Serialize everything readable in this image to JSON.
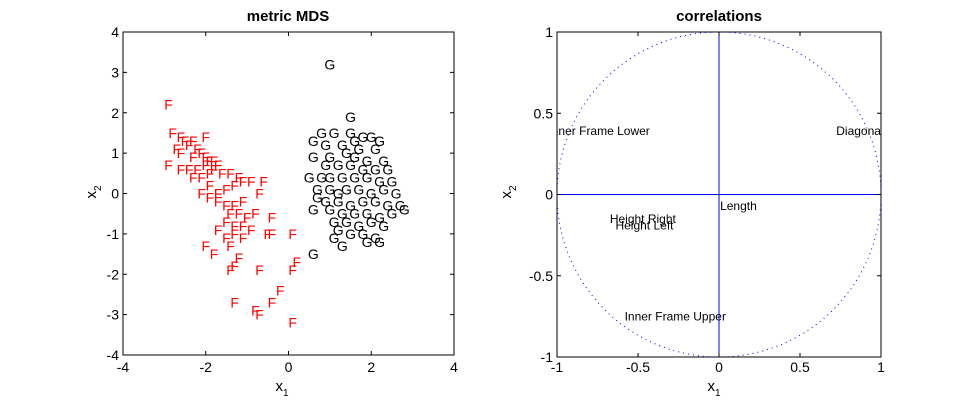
{
  "chart_data": [
    {
      "type": "scatter",
      "title": "metric MDS",
      "xlabel": {
        "base": "x",
        "sub": "1"
      },
      "ylabel": {
        "base": "x",
        "sub": "2"
      },
      "xlim": [
        -4,
        4
      ],
      "ylim": [
        -4,
        4
      ],
      "xticks": [
        -4,
        -2,
        0,
        2,
        4
      ],
      "yticks": [
        -4,
        -3,
        -2,
        -1,
        0,
        1,
        2,
        3,
        4
      ],
      "grid": false,
      "series": [
        {
          "marker": "F",
          "color": "#ff0000",
          "points": [
            [
              -2.9,
              2.2
            ],
            [
              -2.8,
              1.5
            ],
            [
              -2.6,
              1.4
            ],
            [
              -2.7,
              1.1
            ],
            [
              -2.5,
              1.3
            ],
            [
              -2.3,
              1.3
            ],
            [
              -2.0,
              1.4
            ],
            [
              -2.6,
              1.0
            ],
            [
              -2.4,
              1.2
            ],
            [
              -2.2,
              1.1
            ],
            [
              -2.1,
              1.0
            ],
            [
              -2.3,
              0.9
            ],
            [
              -2.0,
              0.9
            ],
            [
              -1.9,
              0.8
            ],
            [
              -1.8,
              0.8
            ],
            [
              -1.7,
              0.7
            ],
            [
              -2.9,
              0.7
            ],
            [
              -2.6,
              0.6
            ],
            [
              -2.4,
              0.6
            ],
            [
              -2.2,
              0.6
            ],
            [
              -2.0,
              0.7
            ],
            [
              -1.8,
              0.6
            ],
            [
              -1.6,
              0.5
            ],
            [
              -2.3,
              0.4
            ],
            [
              -2.1,
              0.4
            ],
            [
              -1.9,
              0.5
            ],
            [
              -1.4,
              0.5
            ],
            [
              -1.2,
              0.4
            ],
            [
              -2.1,
              0.0
            ],
            [
              -1.9,
              0.2
            ],
            [
              -1.7,
              0.0
            ],
            [
              -1.5,
              0.1
            ],
            [
              -1.3,
              0.2
            ],
            [
              -1.1,
              0.3
            ],
            [
              -0.9,
              0.3
            ],
            [
              -0.6,
              0.3
            ],
            [
              -0.7,
              0.0
            ],
            [
              -1.9,
              -0.1
            ],
            [
              -1.7,
              -0.2
            ],
            [
              -1.5,
              -0.3
            ],
            [
              -1.3,
              -0.3
            ],
            [
              -1.1,
              -0.2
            ],
            [
              -1.4,
              -0.5
            ],
            [
              -1.2,
              -0.5
            ],
            [
              -1.0,
              -0.6
            ],
            [
              -0.8,
              -0.5
            ],
            [
              -0.4,
              -0.6
            ],
            [
              -1.5,
              -0.7
            ],
            [
              -1.3,
              -0.8
            ],
            [
              -1.1,
              -0.8
            ],
            [
              -0.9,
              -0.9
            ],
            [
              -1.7,
              -0.9
            ],
            [
              -0.5,
              -1.0
            ],
            [
              -0.4,
              -1.0
            ],
            [
              0.1,
              -1.0
            ],
            [
              -1.3,
              -1.0
            ],
            [
              -1.5,
              -1.1
            ],
            [
              -1.1,
              -1.1
            ],
            [
              -2.0,
              -1.3
            ],
            [
              -1.4,
              -1.3
            ],
            [
              -1.8,
              -1.5
            ],
            [
              -1.2,
              -1.6
            ],
            [
              -1.3,
              -1.8
            ],
            [
              -1.4,
              -1.9
            ],
            [
              -0.7,
              -1.9
            ],
            [
              0.2,
              -1.7
            ],
            [
              0.1,
              -1.9
            ],
            [
              -0.2,
              -2.4
            ],
            [
              -1.3,
              -2.7
            ],
            [
              -0.4,
              -2.7
            ],
            [
              -0.8,
              -2.9
            ],
            [
              -0.7,
              -3.0
            ],
            [
              0.1,
              -3.2
            ]
          ]
        },
        {
          "marker": "G",
          "color": "#000000",
          "points": [
            [
              1.0,
              3.2
            ],
            [
              1.5,
              1.9
            ],
            [
              0.8,
              1.5
            ],
            [
              1.1,
              1.5
            ],
            [
              1.5,
              1.5
            ],
            [
              1.8,
              1.4
            ],
            [
              2.0,
              1.4
            ],
            [
              2.2,
              1.3
            ],
            [
              1.6,
              1.3
            ],
            [
              0.6,
              1.3
            ],
            [
              0.9,
              1.2
            ],
            [
              1.3,
              1.2
            ],
            [
              1.7,
              1.1
            ],
            [
              2.1,
              1.1
            ],
            [
              0.6,
              0.9
            ],
            [
              1.0,
              0.9
            ],
            [
              1.4,
              1.0
            ],
            [
              1.6,
              0.9
            ],
            [
              1.9,
              0.8
            ],
            [
              2.3,
              0.8
            ],
            [
              0.9,
              0.7
            ],
            [
              1.2,
              0.7
            ],
            [
              1.5,
              0.7
            ],
            [
              1.8,
              0.6
            ],
            [
              2.1,
              0.6
            ],
            [
              2.4,
              0.6
            ],
            [
              0.5,
              0.4
            ],
            [
              0.8,
              0.4
            ],
            [
              1.0,
              0.4
            ],
            [
              1.3,
              0.4
            ],
            [
              1.6,
              0.4
            ],
            [
              1.9,
              0.4
            ],
            [
              2.2,
              0.3
            ],
            [
              2.5,
              0.3
            ],
            [
              0.7,
              0.1
            ],
            [
              1.0,
              0.1
            ],
            [
              1.2,
              0.0
            ],
            [
              1.4,
              0.1
            ],
            [
              1.7,
              0.1
            ],
            [
              2.0,
              0.0
            ],
            [
              2.3,
              0.1
            ],
            [
              2.6,
              0.0
            ],
            [
              0.7,
              -0.1
            ],
            [
              0.9,
              -0.2
            ],
            [
              1.2,
              -0.2
            ],
            [
              1.5,
              -0.3
            ],
            [
              1.8,
              -0.2
            ],
            [
              2.1,
              -0.2
            ],
            [
              2.4,
              -0.3
            ],
            [
              2.7,
              -0.3
            ],
            [
              0.6,
              -0.4
            ],
            [
              1.0,
              -0.4
            ],
            [
              1.3,
              -0.5
            ],
            [
              1.6,
              -0.5
            ],
            [
              1.9,
              -0.5
            ],
            [
              2.2,
              -0.6
            ],
            [
              2.5,
              -0.5
            ],
            [
              2.8,
              -0.4
            ],
            [
              1.1,
              -0.7
            ],
            [
              1.4,
              -0.7
            ],
            [
              1.7,
              -0.8
            ],
            [
              2.0,
              -0.7
            ],
            [
              2.3,
              -0.8
            ],
            [
              1.2,
              -0.9
            ],
            [
              1.5,
              -1.0
            ],
            [
              1.8,
              -1.0
            ],
            [
              2.1,
              -1.1
            ],
            [
              1.1,
              -1.1
            ],
            [
              1.3,
              -1.3
            ],
            [
              1.9,
              -1.2
            ],
            [
              2.2,
              -1.2
            ],
            [
              0.6,
              -1.5
            ]
          ]
        }
      ]
    },
    {
      "type": "scatter",
      "title": "correlations",
      "xlabel": {
        "base": "x",
        "sub": "1"
      },
      "ylabel": {
        "base": "x",
        "sub": "2"
      },
      "xlim": [
        -1,
        1
      ],
      "ylim": [
        -1,
        1
      ],
      "xticks": [
        -1,
        -0.5,
        0,
        0.5,
        1
      ],
      "yticks": [
        -1,
        -0.5,
        0,
        0.5,
        1
      ],
      "xtick_labels": [
        "-1",
        "-0.5",
        "0",
        "0.5",
        "1"
      ],
      "ytick_labels": [
        "-1",
        "-0.5",
        "0",
        "0.5",
        "1"
      ],
      "grid": false,
      "unit_circle": {
        "style": "dotted",
        "color": "#0000ff"
      },
      "axes_lines": {
        "color": "#0000ff"
      },
      "points": [
        {
          "label": "Length",
          "x": 0.12,
          "y": -0.07
        },
        {
          "label": "Height Left",
          "x": -0.46,
          "y": -0.19
        },
        {
          "label": "Height Right",
          "x": -0.47,
          "y": -0.15
        },
        {
          "label": "Inner Frame Lower",
          "x": -0.74,
          "y": 0.39
        },
        {
          "label": "Inner Frame Upper",
          "x": -0.27,
          "y": -0.75
        },
        {
          "label": "Diagonal",
          "x": 0.87,
          "y": 0.39
        }
      ]
    }
  ]
}
